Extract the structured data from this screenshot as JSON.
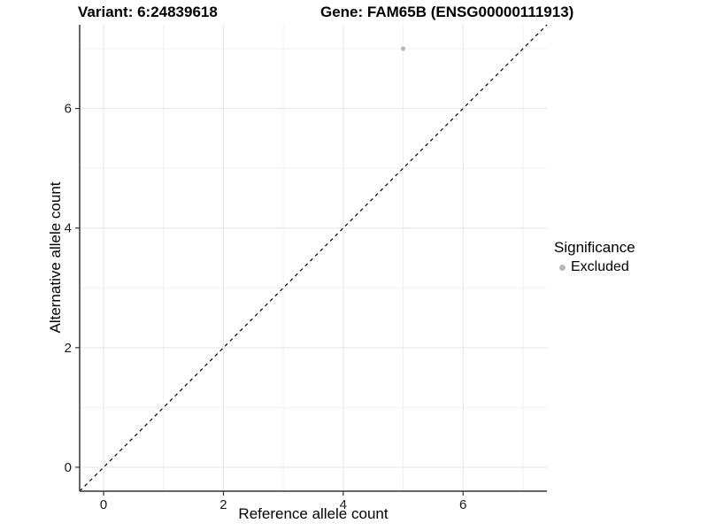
{
  "titles": {
    "variant": "Variant: 6:24839618",
    "gene": "Gene: FAM65B (ENSG00000111913)"
  },
  "chart_data": {
    "type": "scatter",
    "title": "Variant: 6:24839618   Gene: FAM65B (ENSG00000111913)",
    "xlabel": "Reference allele count",
    "ylabel": "Alternative allele count",
    "x_ticks": [
      0,
      2,
      4,
      6
    ],
    "y_ticks": [
      0,
      2,
      4,
      6
    ],
    "x_minor": [
      1,
      3,
      5,
      7
    ],
    "y_minor": [
      1,
      3,
      5,
      7
    ],
    "xlim": [
      -0.4,
      7.4
    ],
    "ylim": [
      -0.4,
      7.4
    ],
    "grid": "on",
    "series": [
      {
        "name": "Excluded",
        "color": "#b9b9b9",
        "points": [
          {
            "x": 5,
            "y": 7
          }
        ]
      }
    ],
    "reference_line": {
      "type": "identity",
      "style": "dashed",
      "color": "#000000"
    },
    "legend": {
      "title": "Significance",
      "position": "right",
      "entries": [
        {
          "label": "Excluded",
          "color": "#b9b9b9"
        }
      ]
    },
    "colors": {
      "grid_major": "#e4e4e4",
      "grid_minor": "#f1f1f1",
      "axis_line": "#333333",
      "tick_text": "#1a1a1a",
      "background": "#ffffff"
    }
  }
}
